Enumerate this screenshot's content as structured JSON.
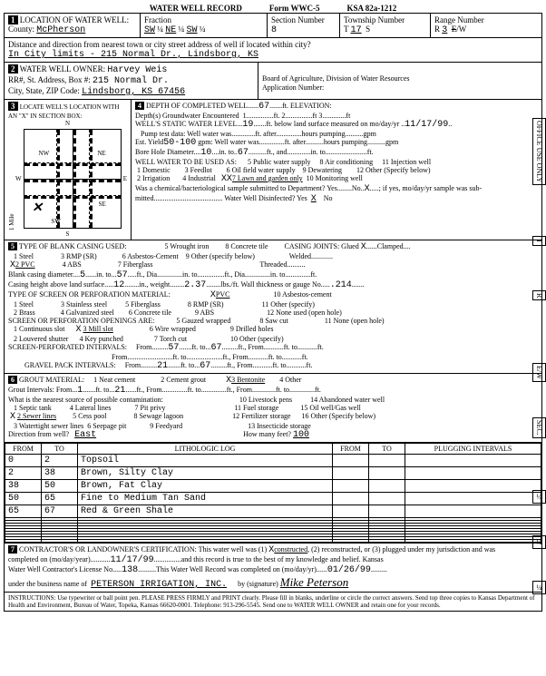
{
  "title": {
    "form": "WATER WELL RECORD",
    "formno": "Form WWC-5",
    "ksa": "KSA 82a-1212"
  },
  "s1": {
    "header": "LOCATION OF WATER WELL:",
    "county_lbl": "County:",
    "county": "McPherson",
    "fraction_lbl": "Fraction",
    "f1": "SW",
    "q": "¼",
    "f2": "NE",
    "f3": "SW",
    "section_lbl": "Section Number",
    "section": "8",
    "twp_lbl": "Township Number",
    "twp_t": "T",
    "twp": "17",
    "twp_s": "S",
    "range_lbl": "Range Number",
    "range_r": "R",
    "range": "3",
    "range_e": "E",
    "range_w": "W",
    "ew_strike": "E",
    "dist_lbl": "Distance and direction from nearest town or city street address of well if located within city?",
    "dist": "In City limits - 215 Normal Dr., Lindsborg, KS"
  },
  "s2": {
    "header": "WATER WELL OWNER:",
    "name": "Harvey Weis",
    "addr_lbl": "RR#, St. Address, Box #:",
    "addr": "215 Normal Dr.",
    "city_lbl": "City, State, ZIP Code:",
    "city": "Lindsborg, KS  67456",
    "boag": "Board of Agriculture, Division of Water Resources",
    "appno": "Application Number:"
  },
  "s3": {
    "header": "LOCATE WELL'S LOCATION WITH AN \"X\" IN SECTION BOX:",
    "n": "N",
    "s": "S",
    "e": "E",
    "w": "W",
    "nw": "NW",
    "ne": "NE",
    "sw": "SW",
    "se": "SE",
    "mile": "1 Mile"
  },
  "s4": {
    "header": "DEPTH OF COMPLETED WELL",
    "depth": "67",
    "ft": "ft.",
    "elev_lbl": "ELEVATION:",
    "l1a": "Depth(s) Groundwater Encountered",
    "l1b": "1",
    "l1c": "ft.   2.",
    "l1d": "ft   3.",
    "l1e": "ft",
    "l2a": "WELL'S STATIC WATER LEVEL",
    "l2b": "19",
    "l2c": "ft. below land surface measured on mo/day/yr",
    "l2d": "11/17/99",
    "l3a": "Pump test data:  Well water was",
    "l3b": "ft. after",
    "l3c": "hours pumping",
    "l3d": "gpm",
    "l4a": "Est. Yield",
    "l4b": "50-100",
    "l4c": "gpm:  Well water was",
    "l4d": "ft.  after",
    "l4e": "hours pumping",
    "l4f": "gpm",
    "l5a": "Bore Hole Diameter",
    "l5b": "10",
    "l5c": "in. to",
    "l5d": "67",
    "l5e": "ft., and",
    "l5f": "in. to",
    "l5g": "ft.",
    "use_lbl": "WELL WATER TO BE USED AS:",
    "u1": "1 Domestic",
    "u2": "2 Irrigation",
    "u3": "3 Feedlot",
    "u4": "4 Industrial",
    "u5": "5 Public water supply",
    "u6": "6 Oil field water supply",
    "u7": "7 Lawn and garden only",
    "u8": "8 Air conditioning",
    "u9": "9 Dewatering",
    "u10": "10 Monitoring well",
    "u11": "11 Injection well",
    "u12": "12 Other (Specify below)",
    "chem_lbl": "Was a chemical/bacteriological sample submitted to Department?  Yes",
    "chem_no": "No",
    "chem_x": "X",
    "chem_tail": "; if yes, mo/day/yr sample was sub-",
    "mitted": "mitted",
    "disinf_lbl": "Water Well Disinfected?  Yes",
    "disinf_x": "X",
    "disinf_no": "No"
  },
  "s5": {
    "header": "TYPE OF BLANK CASING USED:",
    "c1": "1 Steel",
    "c2": "2 PVC",
    "c3": "3 RMP (SR)",
    "c4": "4 ABS",
    "c5": "5 Wrought iron",
    "c6": "6 Asbestos-Cement",
    "c7": "7 Fiberglass",
    "c8": "8 Concrete tile",
    "c9": "9 Other (specify below)",
    "cj": "CASING JOINTS: Glued",
    "cjx": "X",
    "cj2": "Clamped",
    "cj3": "Welded",
    "cj4": "Threaded",
    "bcd": "Blank casing diameter",
    "bcd1": "5",
    "bcd2": "in. to",
    "bcd3": "57",
    "bcd4": "ft., Dia",
    "bcd5": "in. to",
    "bcd6": "ft., Dia",
    "bcd7": "in. to",
    "bcd8": "ft.",
    "cht": "Casing height above land surface",
    "cht1": "12",
    "cht2": "in., weight",
    "cht3": "2.37",
    "cht4": "lbs./ft. Wall thickness or gauge No.",
    "cht5": ".214",
    "scr_lbl": "TYPE OF SCREEN OR PERFORATION MATERIAL:",
    "scr_x": "X",
    "scr_pvc": "PVC",
    "sc1": "1 Steel",
    "sc2": "2 Brass",
    "sc3": "3 Stainless steel",
    "sc4": "4 Galvanized steel",
    "sc5": "5 Fiberglass",
    "sc6": "6 Concrete tile",
    "sc7": "7",
    "sc8": "8 RMP (SR)",
    "sc9": "9 ABS",
    "sc10": "10 Asbestos-cement",
    "sc11": "11 Other (specify)",
    "sc12": "12 None used (open hole)",
    "spo_lbl": "SCREEN OR PERFORATION OPENINGS ARE:",
    "sp1": "1 Continuous slot",
    "sp2": "2 Louvered shutter",
    "sp3": "3 Mill slot",
    "sp3x": "X",
    "sp4": "4 Key punched",
    "sp5": "5 Gauzed wrapped",
    "sp6": "6 Wire wrapped",
    "sp7": "7 Torch cut",
    "sp8": "8 Saw cut",
    "sp9": "9 Drilled holes",
    "sp10": "10 Other (specify)",
    "sp11": "11 None (open hole)",
    "spi": "SCREEN-PERFORATED INTERVALS:",
    "spi_from": "From",
    "spi_f1": "57",
    "spi_to": "ft. to",
    "spi_t1": "67",
    "spi_ft": "ft., From",
    "spi_ft2": "ft. to",
    "spi_ft3": "ft.",
    "gpi": "GRAVEL PACK INTERVALS:",
    "gpi_f1": "21",
    "gpi_t1": "67"
  },
  "s6": {
    "header": "GROUT MATERIAL:",
    "g1": "1 Neat cement",
    "g2": "2 Cement grout",
    "g3": "3 Bentonite",
    "g3x": "X",
    "g4": "4 Other",
    "gi": "Grout Intervals:  From",
    "gi_f1": "1",
    "gi_to": "ft. to",
    "gi_t1": "21",
    "gi_suffix": "ft., From",
    "gi_suffix2": "ft. to",
    "gi_suffix3": "ft., From",
    "gi_suffix4": "ft. to",
    "gi_suffix5": "ft.",
    "contam": "What is the nearest source of possible contamination:",
    "p1": "1 Septic tank",
    "p2": "2 Sewer lines",
    "p2x": "X",
    "p3": "3 Watertight sewer lines",
    "p4": "4 Lateral lines",
    "p5": "5 Cess pool",
    "p6": "6 Seepage pit",
    "p7": "7 Pit privy",
    "p8": "8 Sewage lagoon",
    "p9": "9 Feedyard",
    "p10": "10 Livestock pens",
    "p11": "11 Fuel storage",
    "p12": "12 Fertilizer storage",
    "p13": "13 Insecticide storage",
    "p14": "14 Abandoned water well",
    "p15": "15 Oil well/Gas well",
    "p16": "16 Other (Specify below)",
    "dir_lbl": "Direction from well?",
    "dir": "East",
    "feet_lbl": "How many feet?",
    "feet": "100"
  },
  "log": {
    "h_from": "FROM",
    "h_to": "TO",
    "h_lith": "LITHOLOGIC LOG",
    "h_plug": "PLUGGING INTERVALS",
    "rows": [
      {
        "f": "0",
        "t": "2",
        "d": "Topsoil"
      },
      {
        "f": "2",
        "t": "38",
        "d": "Brown, Silty Clay"
      },
      {
        "f": "38",
        "t": "50",
        "d": "Brown, Fat Clay"
      },
      {
        "f": "50",
        "t": "65",
        "d": "Fine to Medium Tan Sand"
      },
      {
        "f": "65",
        "t": "67",
        "d": "Red & Green Shale"
      }
    ]
  },
  "s7": {
    "header": "CONTRACTOR'S OR LANDOWNER'S CERTIFICATION: This water well was (1)",
    "opt1": "constructed",
    "opt1x": "X",
    "rest": ", (2) reconstructed, or (3) plugged under my jurisdiction and was",
    "l2a": "completed on (mo/day/year)",
    "l2b": "11/17/99",
    "l2c": "and this record is true to the best of my knowledge and belief. Kansas",
    "l3a": "Water Well Contractor's License No.",
    "l3b": "138",
    "l3c": "This Water Well Record was completed on (mo/day/yr)",
    "l3d": "01/26/99",
    "l4a": "under the business name of",
    "l4b": "PETERSON IRRIGATION, INC.",
    "l4c": "by (signature)",
    "sig": "Mike Peterson"
  },
  "instr": "INSTRUCTIONS: Use typewriter or ball point pen. PLEASE PRESS FIRMLY and PRINT clearly. Please fill in blanks, underline or circle the correct answers. Send top three copies to Kansas Department of Health and Environment, Bureau of Water, Topeka, Kansas 66620-0001. Telephone: 913-296-5545. Send one to WATER WELL OWNER and retain one for your records.",
  "side": {
    "office": "OFFICE USE ONLY",
    "t": "T",
    "r": "R",
    "ew": "E/W",
    "sec": "SEC.",
    "q": "¼",
    "qq": "¼",
    "qqq": "¼"
  }
}
